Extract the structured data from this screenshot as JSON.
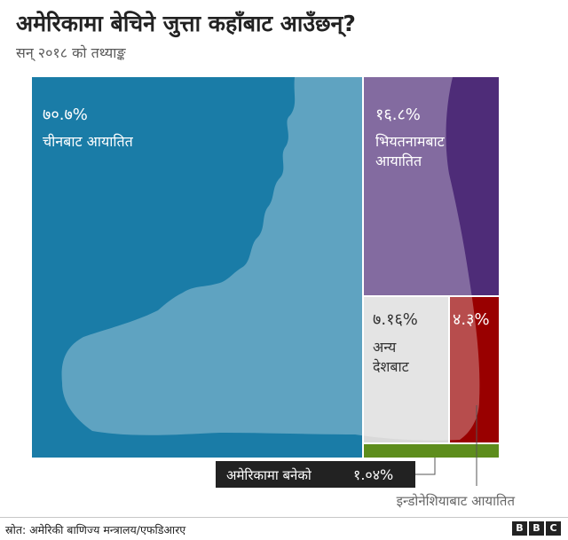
{
  "header": {
    "title": "अमेरिकामा बेचिने जुत्ता कहाँबाट आउँछन्?",
    "subtitle": "सन् २०१८ को तथ्याङ्क"
  },
  "footer": {
    "source": "स्रोत: अमेरिकी बाणिज्य मन्त्रालय/एफडिआरए",
    "logo": [
      "B",
      "B",
      "C"
    ]
  },
  "colors": {
    "china": "#1a7ca7",
    "vietnam": "#4e2c78",
    "other": "#d9d9d9",
    "indonesia": "#990000",
    "usa": "#5d8d1c",
    "boot": "#ffffff",
    "label_box": "#222222"
  },
  "chart_data": {
    "type": "treemap",
    "title": "अमेरिकामा बेचिने जुत्ता कहाँबाट आउँछन्?",
    "subtitle": "सन् २०१८ को तथ्याङ्क",
    "unit": "%",
    "series": [
      {
        "key": "china",
        "value": 70.7,
        "value_label": "७०.७%",
        "label": "चीनबाट आयातित"
      },
      {
        "key": "vietnam",
        "value": 16.8,
        "value_label": "१६.८%",
        "label": "भियतनामबाट आयातित"
      },
      {
        "key": "other",
        "value": 7.16,
        "value_label": "७.१६%",
        "label": "अन्य देशबाट"
      },
      {
        "key": "indonesia",
        "value": 4.3,
        "value_label": "४.३%",
        "label": "इन्डोनेशियाबाट आयातित"
      },
      {
        "key": "usa",
        "value": 1.04,
        "value_label": "१.०४%",
        "label": "अमेरिकामा बनेको"
      }
    ]
  }
}
